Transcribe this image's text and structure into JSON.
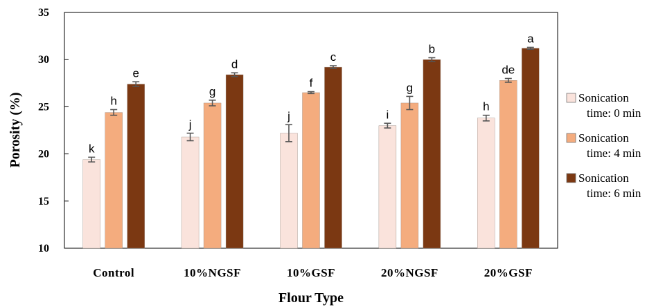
{
  "chart_data": {
    "type": "bar",
    "title": "",
    "xlabel": "Flour Type",
    "ylabel": "Porosity (%)",
    "ylim": [
      10,
      35
    ],
    "yticks": [
      10,
      15,
      20,
      25,
      30,
      35
    ],
    "grid": false,
    "legend_position": "right",
    "categories": [
      "Control",
      "10%NGSF",
      "10%GSF",
      "20%NGSF",
      "20%GSF"
    ],
    "series": [
      {
        "name": "Sonication time: 0 min",
        "legend_lines": [
          "Sonication",
          "time: 0 min"
        ],
        "color": "#FAE3DC",
        "values": [
          19.4,
          21.8,
          22.2,
          23.0,
          23.8
        ],
        "errors": [
          0.25,
          0.4,
          0.9,
          0.25,
          0.3
        ],
        "sig": [
          "k",
          "j",
          "j",
          "i",
          "h"
        ]
      },
      {
        "name": "Sonication time: 4 min",
        "legend_lines": [
          "Sonication",
          "time: 4 min"
        ],
        "color": "#F4AC7E",
        "values": [
          24.4,
          25.4,
          26.5,
          25.4,
          27.8
        ],
        "errors": [
          0.3,
          0.3,
          0.1,
          0.7,
          0.2
        ],
        "sig": [
          "h",
          "g",
          "f",
          "g",
          "de"
        ]
      },
      {
        "name": "Sonication time: 6 min",
        "legend_lines": [
          "Sonication",
          "time: 6 min"
        ],
        "color": "#7B3812",
        "values": [
          27.4,
          28.4,
          29.2,
          30.0,
          31.2
        ],
        "errors": [
          0.25,
          0.2,
          0.15,
          0.2,
          0.1
        ],
        "sig": [
          "e",
          "d",
          "c",
          "b",
          "a"
        ]
      }
    ]
  }
}
